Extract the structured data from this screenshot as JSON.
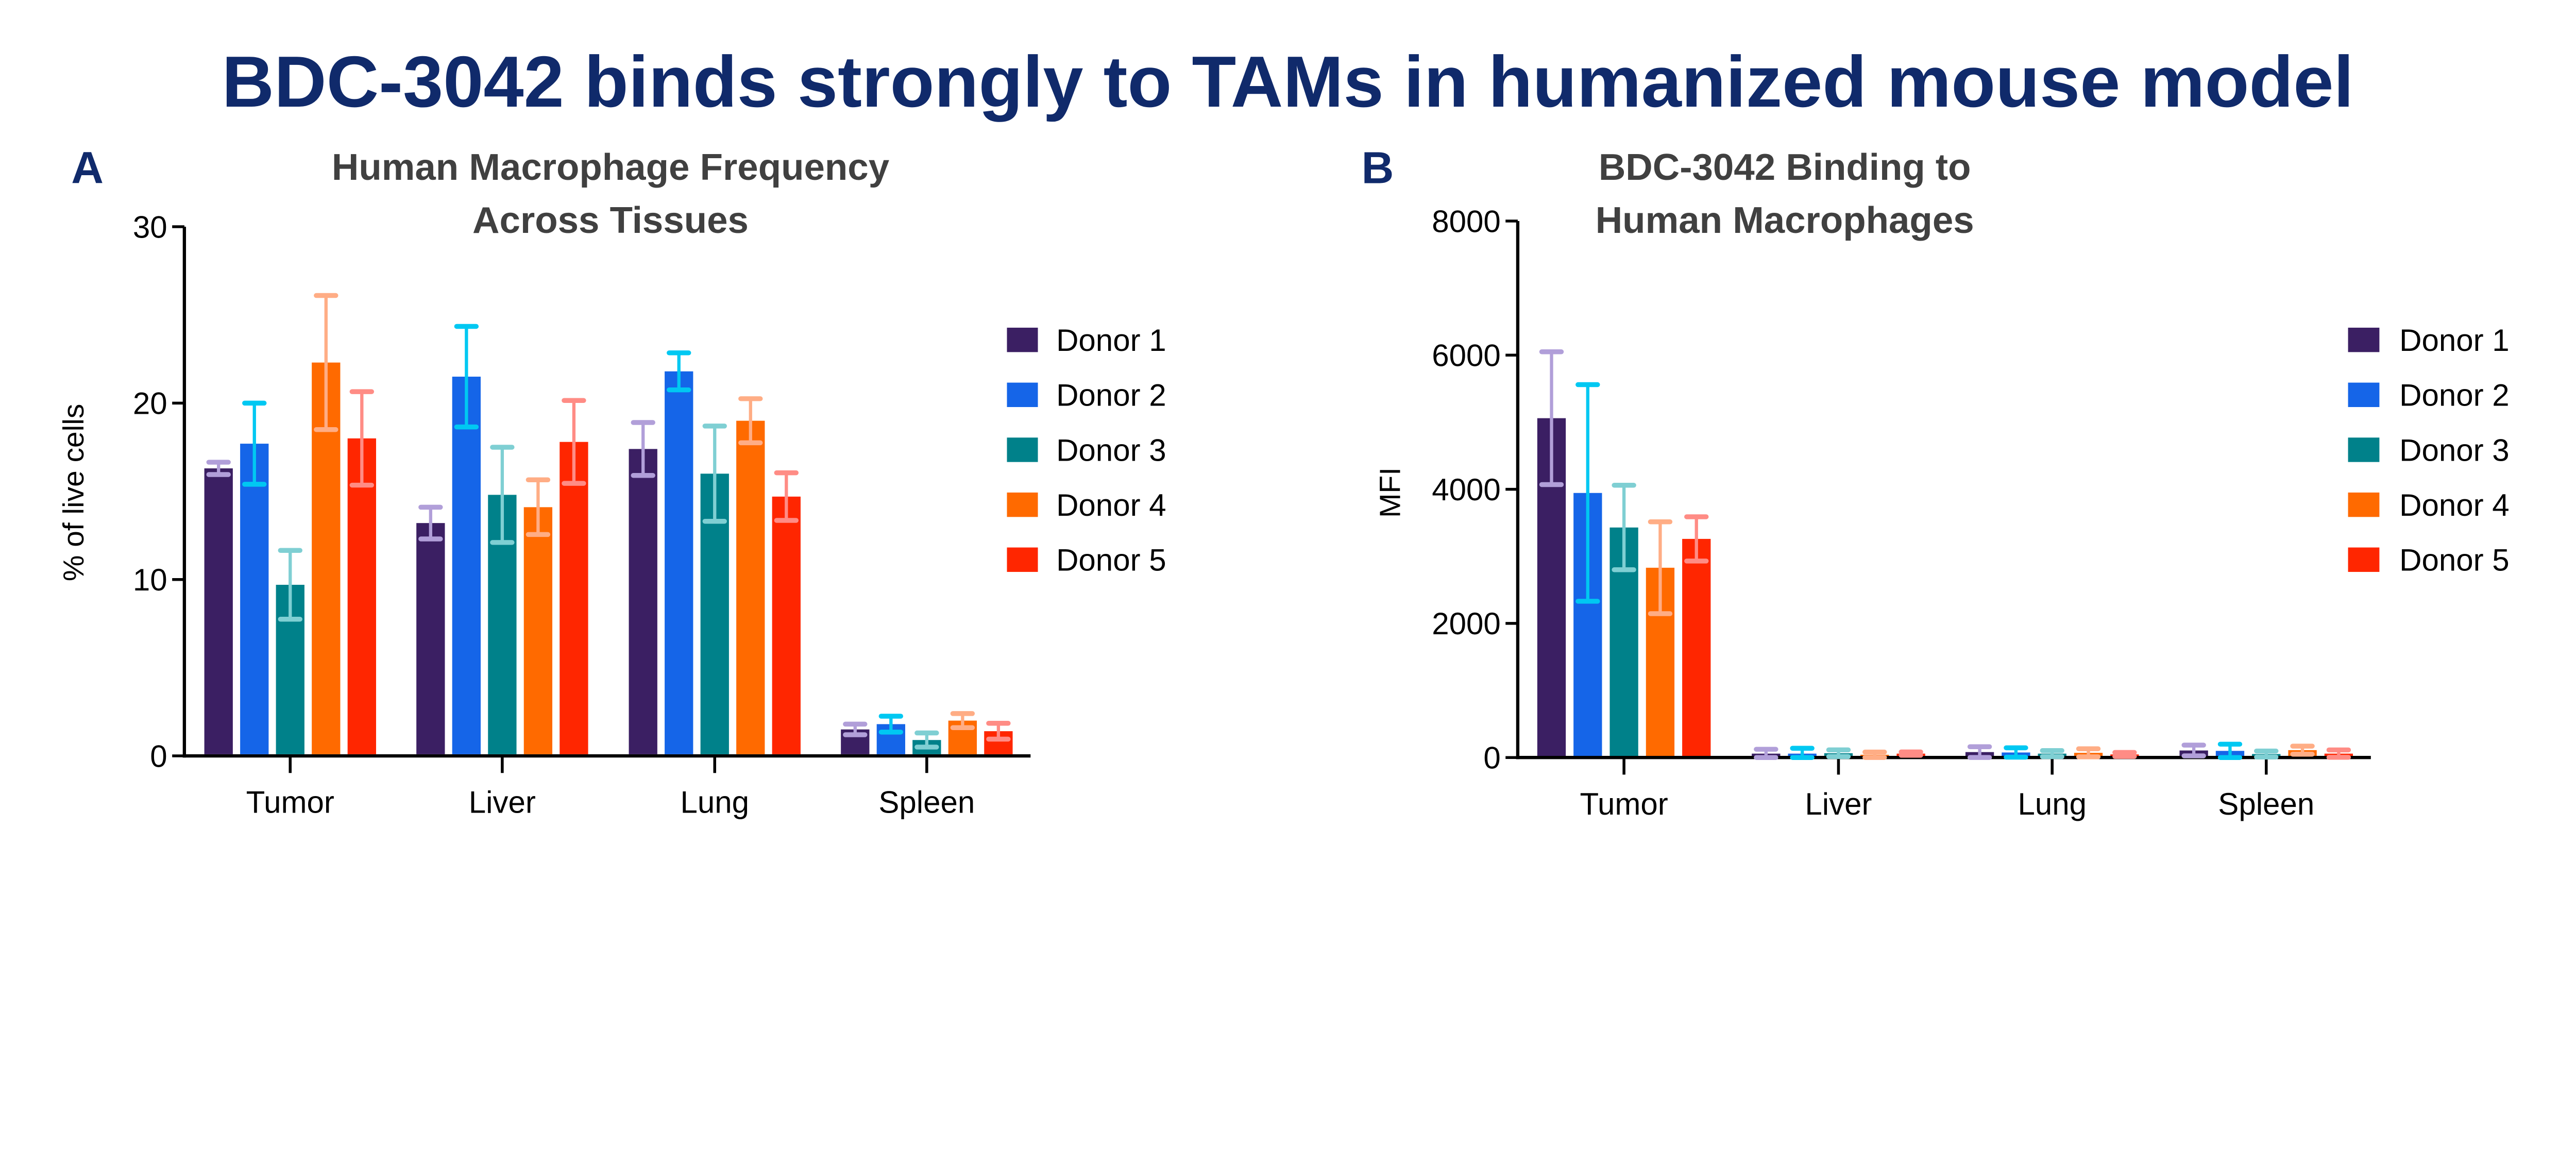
{
  "title": "BDC-3042 binds strongly to TAMs in humanized mouse model",
  "colors": {
    "title": "#102a6b",
    "bars": [
      "#3b1f63",
      "#1565e8",
      "#00818a",
      "#ff6a00",
      "#ff2600"
    ],
    "error_bars": [
      "#b19fd9",
      "#00c8f2",
      "#7fcfd3",
      "#ffad85",
      "#ff8c85"
    ]
  },
  "chart_data": [
    {
      "panel": "A",
      "type": "bar",
      "title": [
        "Human Macrophage Frequency",
        "Across Tissues"
      ],
      "ylabel": "% of live cells",
      "xlabel": "",
      "ylim": [
        0,
        30
      ],
      "yticks": [
        "0",
        "10",
        "20",
        "30"
      ],
      "categories": [
        "Tumor",
        "Liver",
        "Lung",
        "Spleen"
      ],
      "legend_position": "right",
      "series": [
        {
          "name": "Donor 1",
          "values": [
            16.3,
            13.2,
            17.4,
            1.5
          ],
          "errors": [
            0.35,
            0.9,
            1.5,
            0.3
          ]
        },
        {
          "name": "Donor 2",
          "values": [
            17.7,
            21.5,
            21.8,
            1.8
          ],
          "errors": [
            2.3,
            2.85,
            1.05,
            0.45
          ]
        },
        {
          "name": "Donor 3",
          "values": [
            9.7,
            14.8,
            16.0,
            0.9
          ],
          "errors": [
            1.95,
            2.7,
            2.7,
            0.4
          ]
        },
        {
          "name": "Donor 4",
          "values": [
            22.3,
            14.1,
            19.0,
            2.0
          ],
          "errors": [
            3.8,
            1.55,
            1.25,
            0.4
          ]
        },
        {
          "name": "Donor 5",
          "values": [
            18.0,
            17.8,
            14.7,
            1.4
          ],
          "errors": [
            2.65,
            2.35,
            1.35,
            0.45
          ]
        }
      ]
    },
    {
      "panel": "B",
      "type": "bar",
      "title": [
        "BDC-3042 Binding to",
        "Human Macrophages"
      ],
      "ylabel": "MFI",
      "xlabel": "",
      "ylim": [
        0,
        8000
      ],
      "yticks": [
        "0",
        "2000",
        "4000",
        "6000",
        "8000"
      ],
      "categories": [
        "Tumor",
        "Liver",
        "Lung",
        "Spleen"
      ],
      "legend_position": "right",
      "series": [
        {
          "name": "Donor 1",
          "values": [
            5060,
            58,
            81,
            105
          ],
          "errors": [
            990,
            65,
            80,
            80
          ]
        },
        {
          "name": "Donor 2",
          "values": [
            3945,
            58,
            75,
            99
          ],
          "errors": [
            1615,
            80,
            70,
            100
          ]
        },
        {
          "name": "Donor 3",
          "values": [
            3430,
            64,
            58,
            52
          ],
          "errors": [
            630,
            50,
            45,
            45
          ]
        },
        {
          "name": "Donor 4",
          "values": [
            2830,
            41,
            70,
            110
          ],
          "errors": [
            685,
            40,
            60,
            60
          ]
        },
        {
          "name": "Donor 5",
          "values": [
            3260,
            58,
            46,
            58
          ],
          "errors": [
            330,
            25,
            30,
            55
          ]
        }
      ]
    }
  ]
}
